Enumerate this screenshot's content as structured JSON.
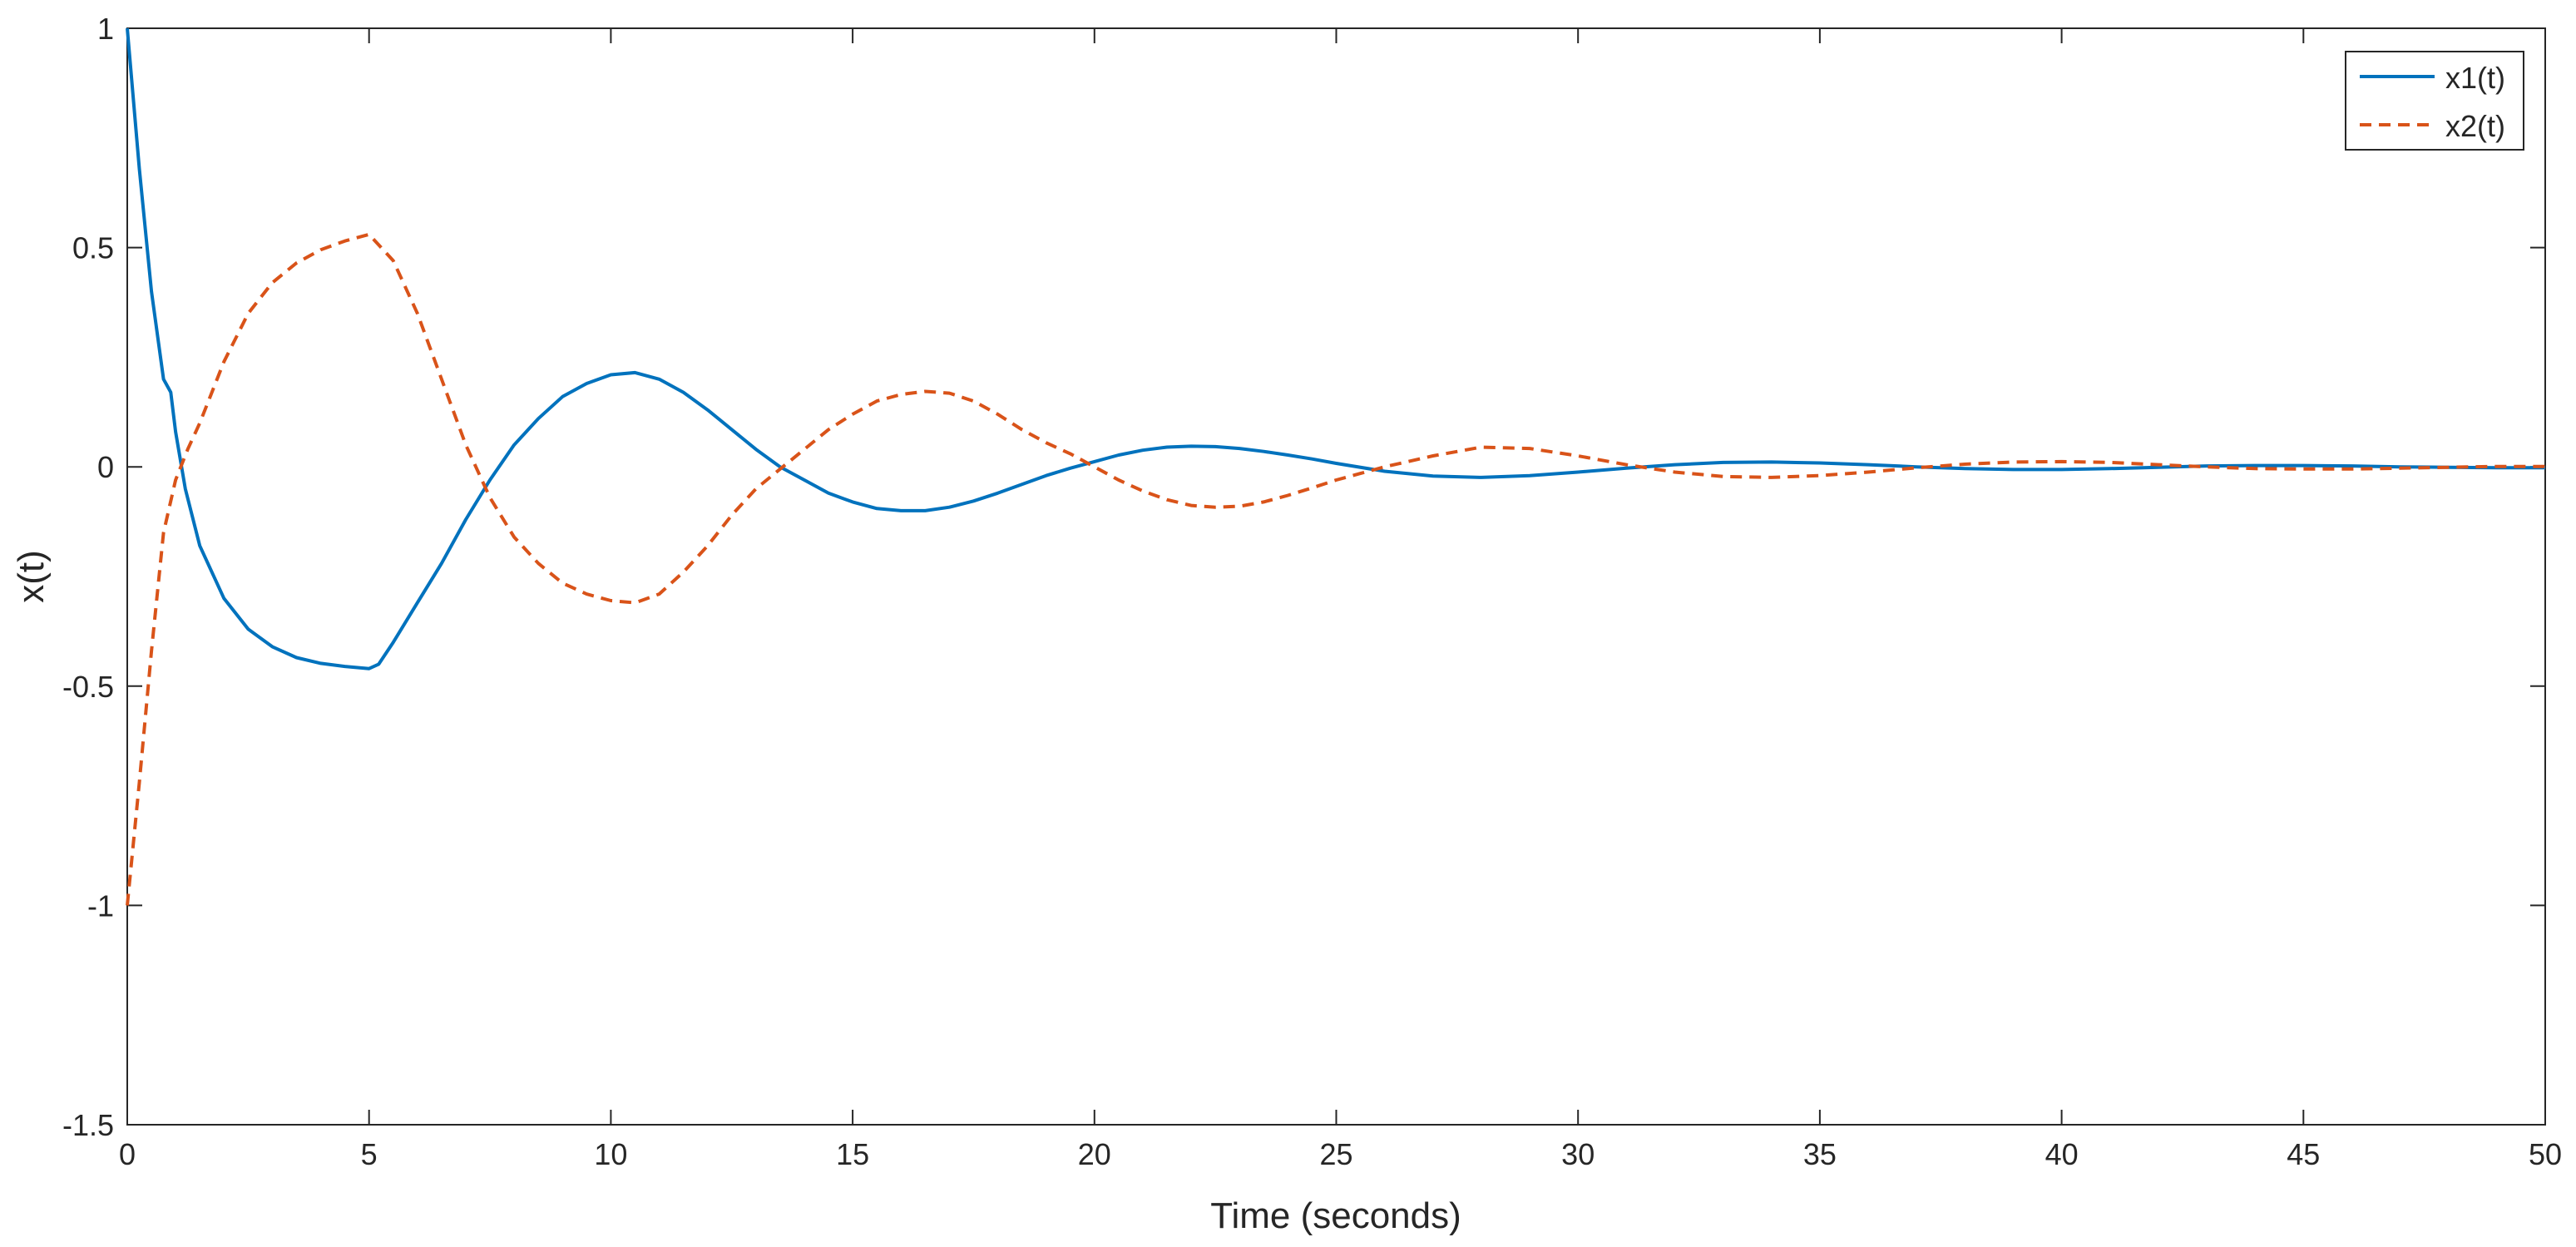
{
  "chart_data": {
    "type": "line",
    "title": "",
    "xlabel": "Time (seconds)",
    "ylabel": "x(t)",
    "xlim": [
      0,
      50
    ],
    "ylim": [
      -1.5,
      1
    ],
    "xticks": [
      0,
      5,
      10,
      15,
      20,
      25,
      30,
      35,
      40,
      45,
      50
    ],
    "xtick_labels": [
      "0",
      "5",
      "10",
      "15",
      "20",
      "25",
      "30",
      "35",
      "40",
      "45",
      "50"
    ],
    "yticks": [
      -1.5,
      -1,
      -0.5,
      0,
      0.5,
      1
    ],
    "ytick_labels": [
      "-1.5",
      "-1",
      "-0.5",
      "0",
      "0.5",
      "1"
    ],
    "grid": false,
    "legend_position": "top-right",
    "series": [
      {
        "name": "x1(t)",
        "color": "#0072BD",
        "style": "solid",
        "x": [
          0,
          0.25,
          0.5,
          0.75,
          0.8,
          0.9,
          1.0,
          1.2,
          1.5,
          2.0,
          2.5,
          3.0,
          3.5,
          4.0,
          4.5,
          5.0,
          5.2,
          5.5,
          6.0,
          6.5,
          7.0,
          7.5,
          8.0,
          8.5,
          9.0,
          9.5,
          10.0,
          10.5,
          11.0,
          11.5,
          12.0,
          12.5,
          13.0,
          13.5,
          14.0,
          14.5,
          15.0,
          15.5,
          16.0,
          16.5,
          17.0,
          17.5,
          18.0,
          18.5,
          19.0,
          19.5,
          20.0,
          20.5,
          21.0,
          21.5,
          22.0,
          22.5,
          23.0,
          23.5,
          24.0,
          24.5,
          25.0,
          26.0,
          27.0,
          28.0,
          29.0,
          30.0,
          31.0,
          32.0,
          33.0,
          34.0,
          35.0,
          36.0,
          37.0,
          38.0,
          39.0,
          40.0,
          41.0,
          42.0,
          43.0,
          44.0,
          45.0,
          46.0,
          47.0,
          48.0,
          49.0,
          50.0
        ],
        "y": [
          1.0,
          0.68,
          0.4,
          0.2,
          0.19,
          0.17,
          0.08,
          -0.05,
          -0.18,
          -0.3,
          -0.37,
          -0.41,
          -0.435,
          -0.448,
          -0.455,
          -0.46,
          -0.45,
          -0.4,
          -0.31,
          -0.22,
          -0.12,
          -0.03,
          0.05,
          0.11,
          0.16,
          0.19,
          0.21,
          0.215,
          0.2,
          0.17,
          0.13,
          0.085,
          0.04,
          0.0,
          -0.03,
          -0.06,
          -0.08,
          -0.095,
          -0.1,
          -0.1,
          -0.092,
          -0.078,
          -0.06,
          -0.04,
          -0.02,
          -0.003,
          0.012,
          0.027,
          0.038,
          0.045,
          0.047,
          0.046,
          0.042,
          0.035,
          0.027,
          0.018,
          0.008,
          -0.01,
          -0.021,
          -0.024,
          -0.02,
          -0.012,
          -0.003,
          0.005,
          0.01,
          0.011,
          0.009,
          0.005,
          0.0,
          -0.004,
          -0.006,
          -0.006,
          -0.004,
          -0.001,
          0.002,
          0.003,
          0.003,
          0.002,
          0.0,
          -0.001,
          -0.002,
          -0.002
        ]
      },
      {
        "name": "x2(t)",
        "color": "#D95319",
        "style": "dashed",
        "x": [
          0,
          0.25,
          0.5,
          0.75,
          1.0,
          1.25,
          1.5,
          2.0,
          2.5,
          3.0,
          3.5,
          4.0,
          4.5,
          5.0,
          5.5,
          6.0,
          6.5,
          7.0,
          7.5,
          8.0,
          8.5,
          9.0,
          9.5,
          10.0,
          10.5,
          11.0,
          11.5,
          12.0,
          12.5,
          13.0,
          13.5,
          14.0,
          14.5,
          15.0,
          15.5,
          16.0,
          16.5,
          17.0,
          17.5,
          18.0,
          18.5,
          19.0,
          19.5,
          20.0,
          20.5,
          21.0,
          21.5,
          22.0,
          22.5,
          23.0,
          23.5,
          24.0,
          24.5,
          25.0,
          25.5,
          26.0,
          27.0,
          28.0,
          29.0,
          30.0,
          31.0,
          32.0,
          33.0,
          34.0,
          35.0,
          36.0,
          37.0,
          38.0,
          39.0,
          40.0,
          41.0,
          42.0,
          43.0,
          44.0,
          45.0,
          46.0,
          47.0,
          48.0,
          49.0,
          50.0
        ],
        "y": [
          -1.0,
          -0.72,
          -0.42,
          -0.15,
          -0.03,
          0.04,
          0.1,
          0.24,
          0.35,
          0.42,
          0.465,
          0.495,
          0.515,
          0.53,
          0.47,
          0.35,
          0.2,
          0.05,
          -0.07,
          -0.16,
          -0.22,
          -0.265,
          -0.29,
          -0.305,
          -0.31,
          -0.29,
          -0.24,
          -0.18,
          -0.11,
          -0.05,
          -0.005,
          0.04,
          0.085,
          0.12,
          0.15,
          0.165,
          0.172,
          0.168,
          0.15,
          0.12,
          0.085,
          0.055,
          0.03,
          0.0,
          -0.03,
          -0.055,
          -0.075,
          -0.088,
          -0.092,
          -0.09,
          -0.08,
          -0.065,
          -0.048,
          -0.03,
          -0.015,
          0.0,
          0.025,
          0.045,
          0.042,
          0.025,
          0.005,
          -0.012,
          -0.022,
          -0.024,
          -0.02,
          -0.012,
          -0.002,
          0.006,
          0.011,
          0.012,
          0.01,
          0.005,
          0.0,
          -0.004,
          -0.005,
          -0.005,
          -0.003,
          -0.001,
          0.001,
          0.001
        ]
      }
    ]
  }
}
